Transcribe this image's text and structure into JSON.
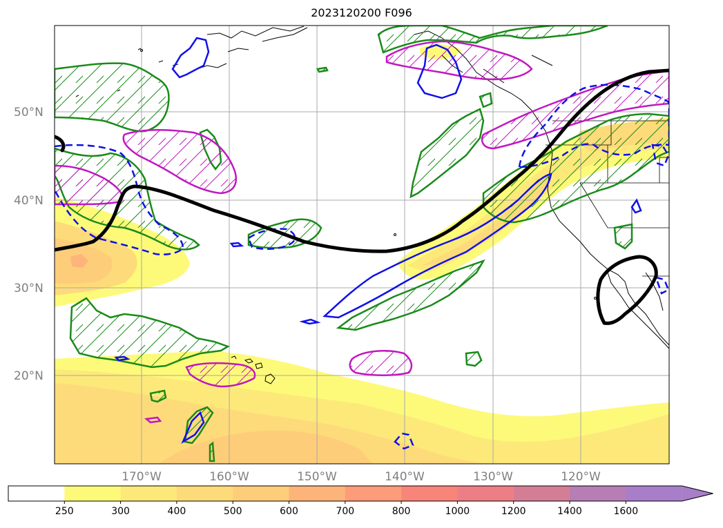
{
  "title": "2023120200 F096",
  "map": {
    "lat_labels": [
      "50°N",
      "40°N",
      "30°N",
      "20°N"
    ],
    "lon_labels": [
      "170°W",
      "160°W",
      "150°W",
      "140°W",
      "130°W",
      "120°W"
    ],
    "grid": true,
    "colors": {
      "grid": "#a8a8a8",
      "coast": "#000000",
      "label": "#808080",
      "jet": "#000000",
      "green": "#1a8a1a",
      "magenta": "#c018c0",
      "blue": "#1010e8"
    }
  },
  "colorbar": {
    "ticks": [
      "250",
      "300",
      "400",
      "500",
      "600",
      "700",
      "800",
      "1000",
      "1200",
      "1400",
      "1600"
    ],
    "colors": [
      "#ffffff",
      "#fdfa7a",
      "#fde97a",
      "#fedb7a",
      "#fecd7a",
      "#fdb47a",
      "#fc9c7a",
      "#f8857a",
      "#ee7e85",
      "#d47e96",
      "#b67eb4",
      "#a87ec8"
    ],
    "extend": "max"
  }
}
